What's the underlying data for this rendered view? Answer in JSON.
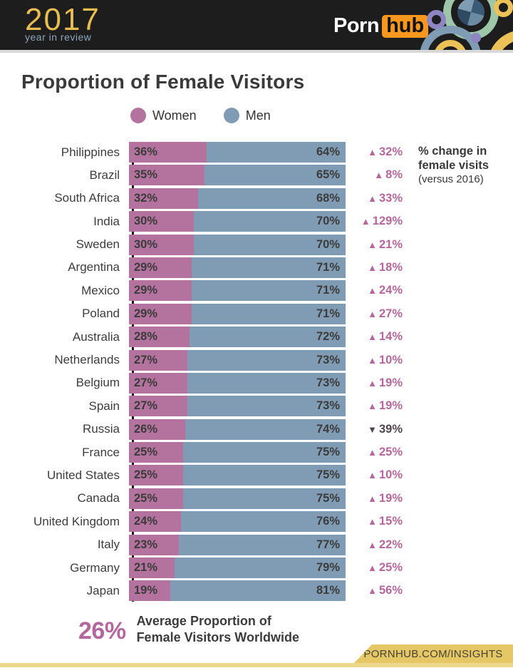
{
  "header": {
    "year": "2017",
    "tagline": "year in review",
    "brand_left": "Porn",
    "brand_right": "hub"
  },
  "title": "Proportion of Female Visitors",
  "legend": {
    "women": "Women",
    "men": "Men"
  },
  "annotation": {
    "line1": "% change in",
    "line2": "female visits",
    "line3": "(versus 2016)"
  },
  "icons": {
    "up": "▲",
    "down": "▼"
  },
  "colors": {
    "women": "#b3739e",
    "men": "#7f9cb4",
    "change_up": "#b4679c",
    "change_down": "#4f444c",
    "gold": "#e5c765",
    "orange": "#f7971d"
  },
  "chart_data": {
    "type": "bar",
    "orientation": "horizontal-stacked",
    "title": "Proportion of Female Visitors",
    "series": [
      {
        "name": "Women"
      },
      {
        "name": "Men"
      }
    ],
    "xlim": [
      0,
      100
    ],
    "legend_position": "top",
    "grid": false,
    "rows": [
      {
        "country": "Philippines",
        "women": 36,
        "men": 64,
        "women_label": "36%",
        "men_label": "64%",
        "change": "32%",
        "direction": "up"
      },
      {
        "country": "Brazil",
        "women": 35,
        "men": 65,
        "women_label": "35%",
        "men_label": "65%",
        "change": "8%",
        "direction": "up"
      },
      {
        "country": "South Africa",
        "women": 32,
        "men": 68,
        "women_label": "32%",
        "men_label": "68%",
        "change": "33%",
        "direction": "up"
      },
      {
        "country": "India",
        "women": 30,
        "men": 70,
        "women_label": "30%",
        "men_label": "70%",
        "change": "129%",
        "direction": "up"
      },
      {
        "country": "Sweden",
        "women": 30,
        "men": 70,
        "women_label": "30%",
        "men_label": "70%",
        "change": "21%",
        "direction": "up"
      },
      {
        "country": "Argentina",
        "women": 29,
        "men": 71,
        "women_label": "29%",
        "men_label": "71%",
        "change": "18%",
        "direction": "up"
      },
      {
        "country": "Mexico",
        "women": 29,
        "men": 71,
        "women_label": "29%",
        "men_label": "71%",
        "change": "24%",
        "direction": "up"
      },
      {
        "country": "Poland",
        "women": 29,
        "men": 71,
        "women_label": "29%",
        "men_label": "71%",
        "change": "27%",
        "direction": "up"
      },
      {
        "country": "Australia",
        "women": 28,
        "men": 72,
        "women_label": "28%",
        "men_label": "72%",
        "change": "14%",
        "direction": "up"
      },
      {
        "country": "Netherlands",
        "women": 27,
        "men": 73,
        "women_label": "27%",
        "men_label": "73%",
        "change": "10%",
        "direction": "up"
      },
      {
        "country": "Belgium",
        "women": 27,
        "men": 73,
        "women_label": "27%",
        "men_label": "73%",
        "change": "19%",
        "direction": "up"
      },
      {
        "country": "Spain",
        "women": 27,
        "men": 73,
        "women_label": "27%",
        "men_label": "73%",
        "change": "19%",
        "direction": "up"
      },
      {
        "country": "Russia",
        "women": 26,
        "men": 74,
        "women_label": "26%",
        "men_label": "74%",
        "change": "39%",
        "direction": "down"
      },
      {
        "country": "France",
        "women": 25,
        "men": 75,
        "women_label": "25%",
        "men_label": "75%",
        "change": "25%",
        "direction": "up"
      },
      {
        "country": "United States",
        "women": 25,
        "men": 75,
        "women_label": "25%",
        "men_label": "75%",
        "change": "10%",
        "direction": "up"
      },
      {
        "country": "Canada",
        "women": 25,
        "men": 75,
        "women_label": "25%",
        "men_label": "75%",
        "change": "19%",
        "direction": "up"
      },
      {
        "country": "United Kingdom",
        "women": 24,
        "men": 76,
        "women_label": "24%",
        "men_label": "76%",
        "change": "15%",
        "direction": "up"
      },
      {
        "country": "Italy",
        "women": 23,
        "men": 77,
        "women_label": "23%",
        "men_label": "77%",
        "change": "22%",
        "direction": "up"
      },
      {
        "country": "Germany",
        "women": 21,
        "men": 79,
        "women_label": "21%",
        "men_label": "79%",
        "change": "25%",
        "direction": "up"
      },
      {
        "country": "Japan",
        "women": 19,
        "men": 81,
        "women_label": "19%",
        "men_label": "81%",
        "change": "56%",
        "direction": "up"
      }
    ]
  },
  "average": {
    "value": "26%",
    "label_line1": "Average Proportion of",
    "label_line2": "Female Visitors Worldwide"
  },
  "footer": {
    "url": "PORNHUB.COM/INSIGHTS"
  }
}
